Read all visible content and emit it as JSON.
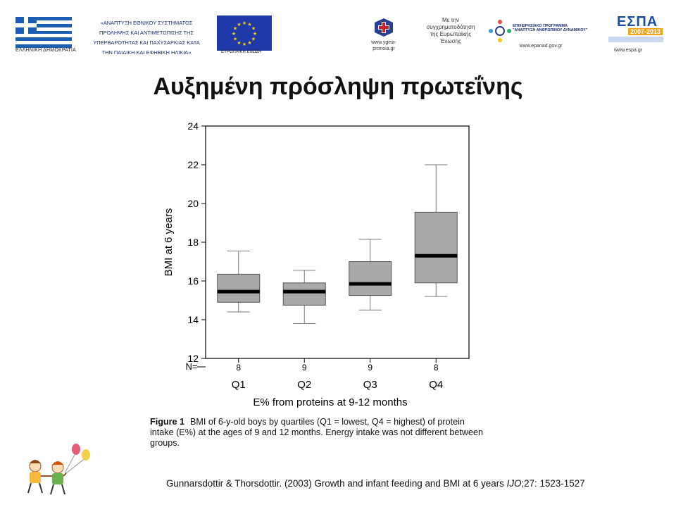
{
  "header": {
    "flag_caption": "ΕΛΛΗΝΙΚΗ ΔΗΜΟΚΡΑΤΙΑ",
    "ministry_lines": [
      "«ΑΝΑΠΤΥΞΗ ΕΘΝΙΚΟΥ ΣΥΣΤΗΜΑΤΟΣ",
      "ΠΡΟΛΗΨΗΣ ΚΑΙ ΑΝΤΙΜΕΤΩΠΙΣΗΣ ΤΗΣ",
      "ΥΠΕΡΒΑΡΟΤΗΤΑΣ ΚΑΙ ΠΑΧΥΣΑΡΚΙΑΣ ΚΑΤΑ",
      "ΤΗΝ ΠΑΙΔΙΚΗ ΚΑΙ ΕΦΗΒΙΚΗ ΗΛΙΚΙΑ»"
    ],
    "eu_caption": "ΕΥΡΩΠΑΪΚΗ ΕΝΩΣΗ",
    "ygeia_url_1": "www.ygeia-",
    "ygeia_url_2": "pronoia.gr",
    "cofund_lines": [
      "Με την",
      "συγχρηματοδότηση",
      "της Ευρωπαϊκής",
      "Ένωσης"
    ],
    "epanad_line_1": "ΕΠΙΧΕΙΡΗΣΙΑΚΟ ΠΡΟΓΡΑΜΜΑ",
    "epanad_line_2": "\"ΑΝΑΠΤΥΞΗ ΑΝΘΡΩΠΙΝΟΥ ΔΥΝΑΜΙΚΟΥ\"",
    "epanad_url": "www.epanad.gov.gr",
    "espa_title": "ΕΣΠΑ",
    "espa_years": "2007-2013",
    "espa_url": "www.espa.gr"
  },
  "slide": {
    "title": "Αυξημένη πρόσληψη πρωτεΐνης"
  },
  "chart_data": {
    "type": "boxplot",
    "title": "",
    "ylabel": "BMI at 6 years",
    "xlabel": "E% from proteins at 9-12 months",
    "ylim": [
      12,
      24
    ],
    "yticks": [
      12,
      14,
      16,
      18,
      20,
      22,
      24
    ],
    "n_label": "N=",
    "categories": [
      "Q1",
      "Q2",
      "Q3",
      "Q4"
    ],
    "n": [
      "8",
      "9",
      "9",
      "8"
    ],
    "boxes": [
      {
        "category": "Q1",
        "min": 14.4,
        "q1": 14.9,
        "median": 15.45,
        "q3": 16.35,
        "max": 17.55
      },
      {
        "category": "Q2",
        "min": 13.8,
        "q1": 14.75,
        "median": 15.45,
        "q3": 15.9,
        "max": 16.55
      },
      {
        "category": "Q3",
        "min": 14.5,
        "q1": 15.25,
        "median": 15.85,
        "q3": 17.0,
        "max": 18.15
      },
      {
        "category": "Q4",
        "min": 15.2,
        "q1": 15.9,
        "median": 17.3,
        "q3": 19.55,
        "max": 22.0
      }
    ],
    "colors": {
      "box": "#a9a9a9",
      "median": "#000000",
      "whisker": "#7a7a7a"
    },
    "grid": false
  },
  "caption": {
    "label": "Figure 1",
    "text": "BMI of 6-y-old boys by quartiles (Q1 = lowest, Q4 = highest) of protein intake (E%) at the ages of 9 and 12 months. Energy intake was not different between groups."
  },
  "reference": {
    "authors": "Gunnarsdottir & Thorsdottir. (2003) Growth and infant feeding and BMI at 6 years",
    "journal": "IJO",
    "volume": ";27: 1523-1527"
  }
}
